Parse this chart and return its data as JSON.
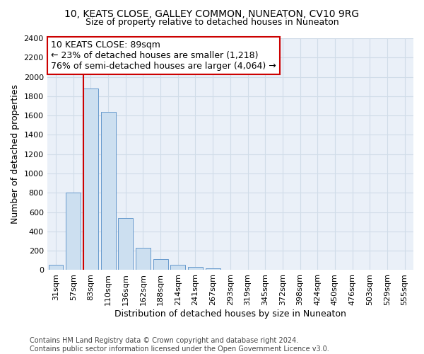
{
  "title": "10, KEATS CLOSE, GALLEY COMMON, NUNEATON, CV10 9RG",
  "subtitle": "Size of property relative to detached houses in Nuneaton",
  "xlabel": "Distribution of detached houses by size in Nuneaton",
  "ylabel": "Number of detached properties",
  "bar_labels": [
    "31sqm",
    "57sqm",
    "83sqm",
    "110sqm",
    "136sqm",
    "162sqm",
    "188sqm",
    "214sqm",
    "241sqm",
    "267sqm",
    "293sqm",
    "319sqm",
    "345sqm",
    "372sqm",
    "398sqm",
    "424sqm",
    "450sqm",
    "476sqm",
    "503sqm",
    "529sqm",
    "555sqm"
  ],
  "bar_values": [
    55,
    800,
    1880,
    1640,
    540,
    230,
    110,
    55,
    35,
    20,
    0,
    0,
    0,
    0,
    0,
    0,
    0,
    0,
    0,
    0,
    0
  ],
  "bar_color": "#ccdff0",
  "bar_edge_color": "#6699cc",
  "vline_x_index": 2,
  "vline_color": "#cc0000",
  "ylim": [
    0,
    2400
  ],
  "yticks": [
    0,
    200,
    400,
    600,
    800,
    1000,
    1200,
    1400,
    1600,
    1800,
    2000,
    2200,
    2400
  ],
  "annotation_title": "10 KEATS CLOSE: 89sqm",
  "annotation_line1": "← 23% of detached houses are smaller (1,218)",
  "annotation_line2": "76% of semi-detached houses are larger (4,064) →",
  "annotation_box_facecolor": "#ffffff",
  "annotation_box_edgecolor": "#cc0000",
  "grid_color": "#d0dce8",
  "bg_color": "#eaf0f8",
  "footer_line1": "Contains HM Land Registry data © Crown copyright and database right 2024.",
  "footer_line2": "Contains public sector information licensed under the Open Government Licence v3.0.",
  "title_fontsize": 10,
  "subtitle_fontsize": 9,
  "axis_label_fontsize": 9,
  "tick_fontsize": 8,
  "annotation_fontsize": 9,
  "footer_fontsize": 7
}
